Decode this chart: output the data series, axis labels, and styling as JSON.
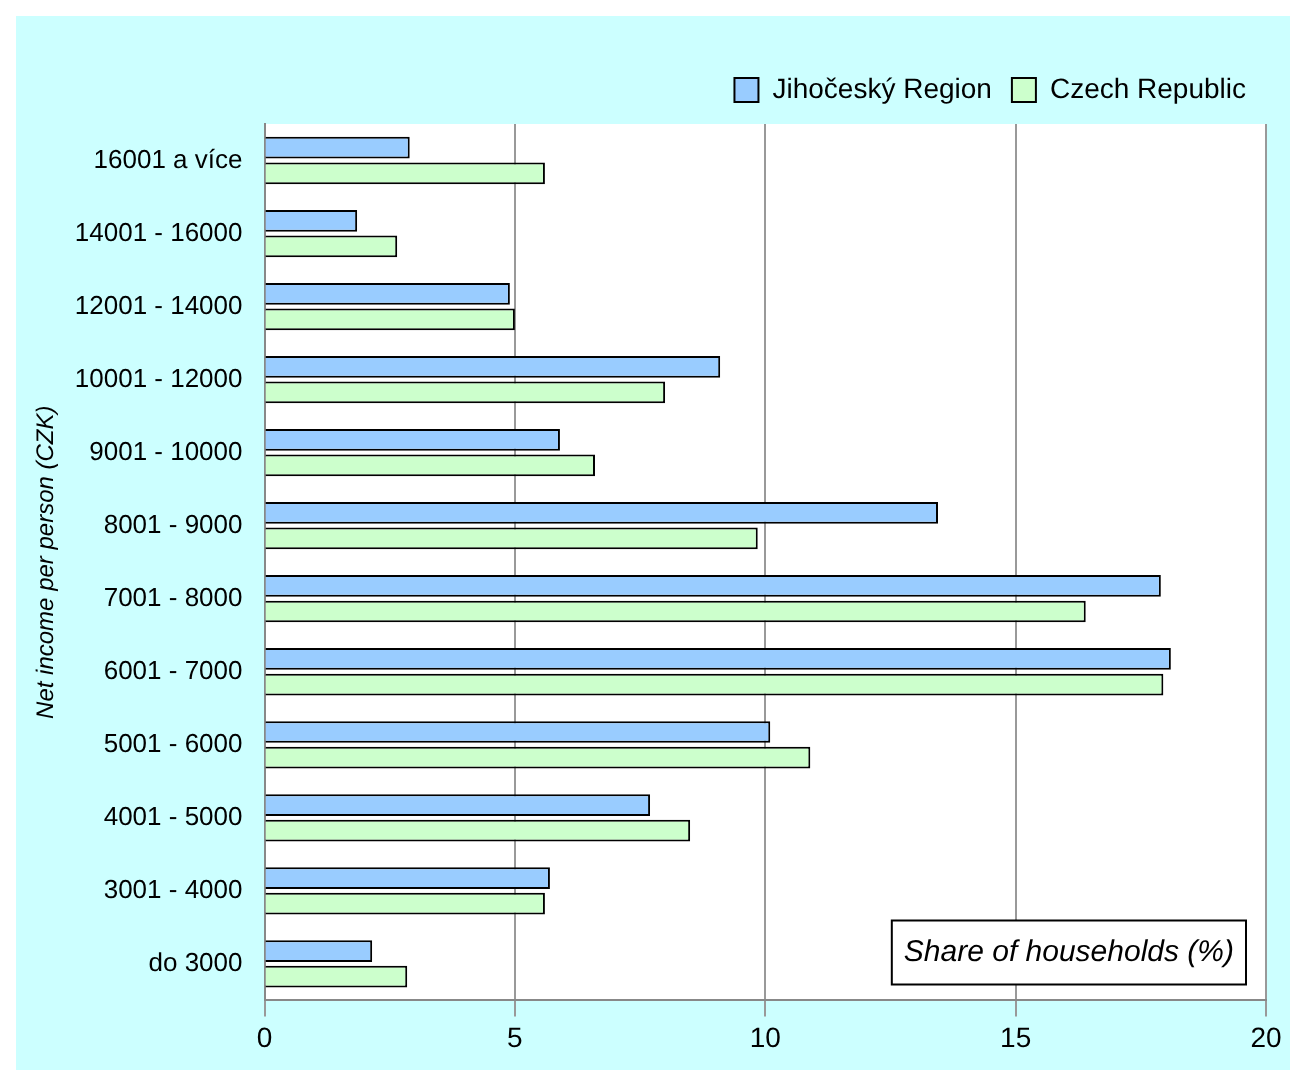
{
  "chart_data": {
    "type": "bar",
    "orientation": "horizontal",
    "xlabel": "Share of households (%)",
    "ylabel": "Net income per person (CZK)",
    "categories": [
      "16001 a více",
      "14001 - 16000",
      "12001 - 14000",
      "10001 - 12000",
      "9001 - 10000",
      "8001 - 9000",
      "7001 - 8000",
      "6001 - 7000",
      "5001 - 6000",
      "4001 - 5000",
      "3001 - 4000",
      "do 3000"
    ],
    "series": [
      {
        "name": "Jihočeský Region",
        "color": "#99ccff",
        "values": [
          2.9,
          1.85,
          4.9,
          9.1,
          5.9,
          13.45,
          17.9,
          18.1,
          10.1,
          7.7,
          5.7,
          2.15
        ]
      },
      {
        "name": "Czech Republic",
        "color": "#ccffcc",
        "values": [
          5.6,
          2.65,
          5.0,
          8.0,
          6.6,
          9.85,
          16.4,
          17.95,
          10.9,
          8.5,
          5.6,
          2.85
        ]
      }
    ],
    "xlim": [
      0,
      20
    ],
    "xticks": [
      0,
      5,
      10,
      15,
      20
    ],
    "grid": "x",
    "legend": "top right"
  }
}
